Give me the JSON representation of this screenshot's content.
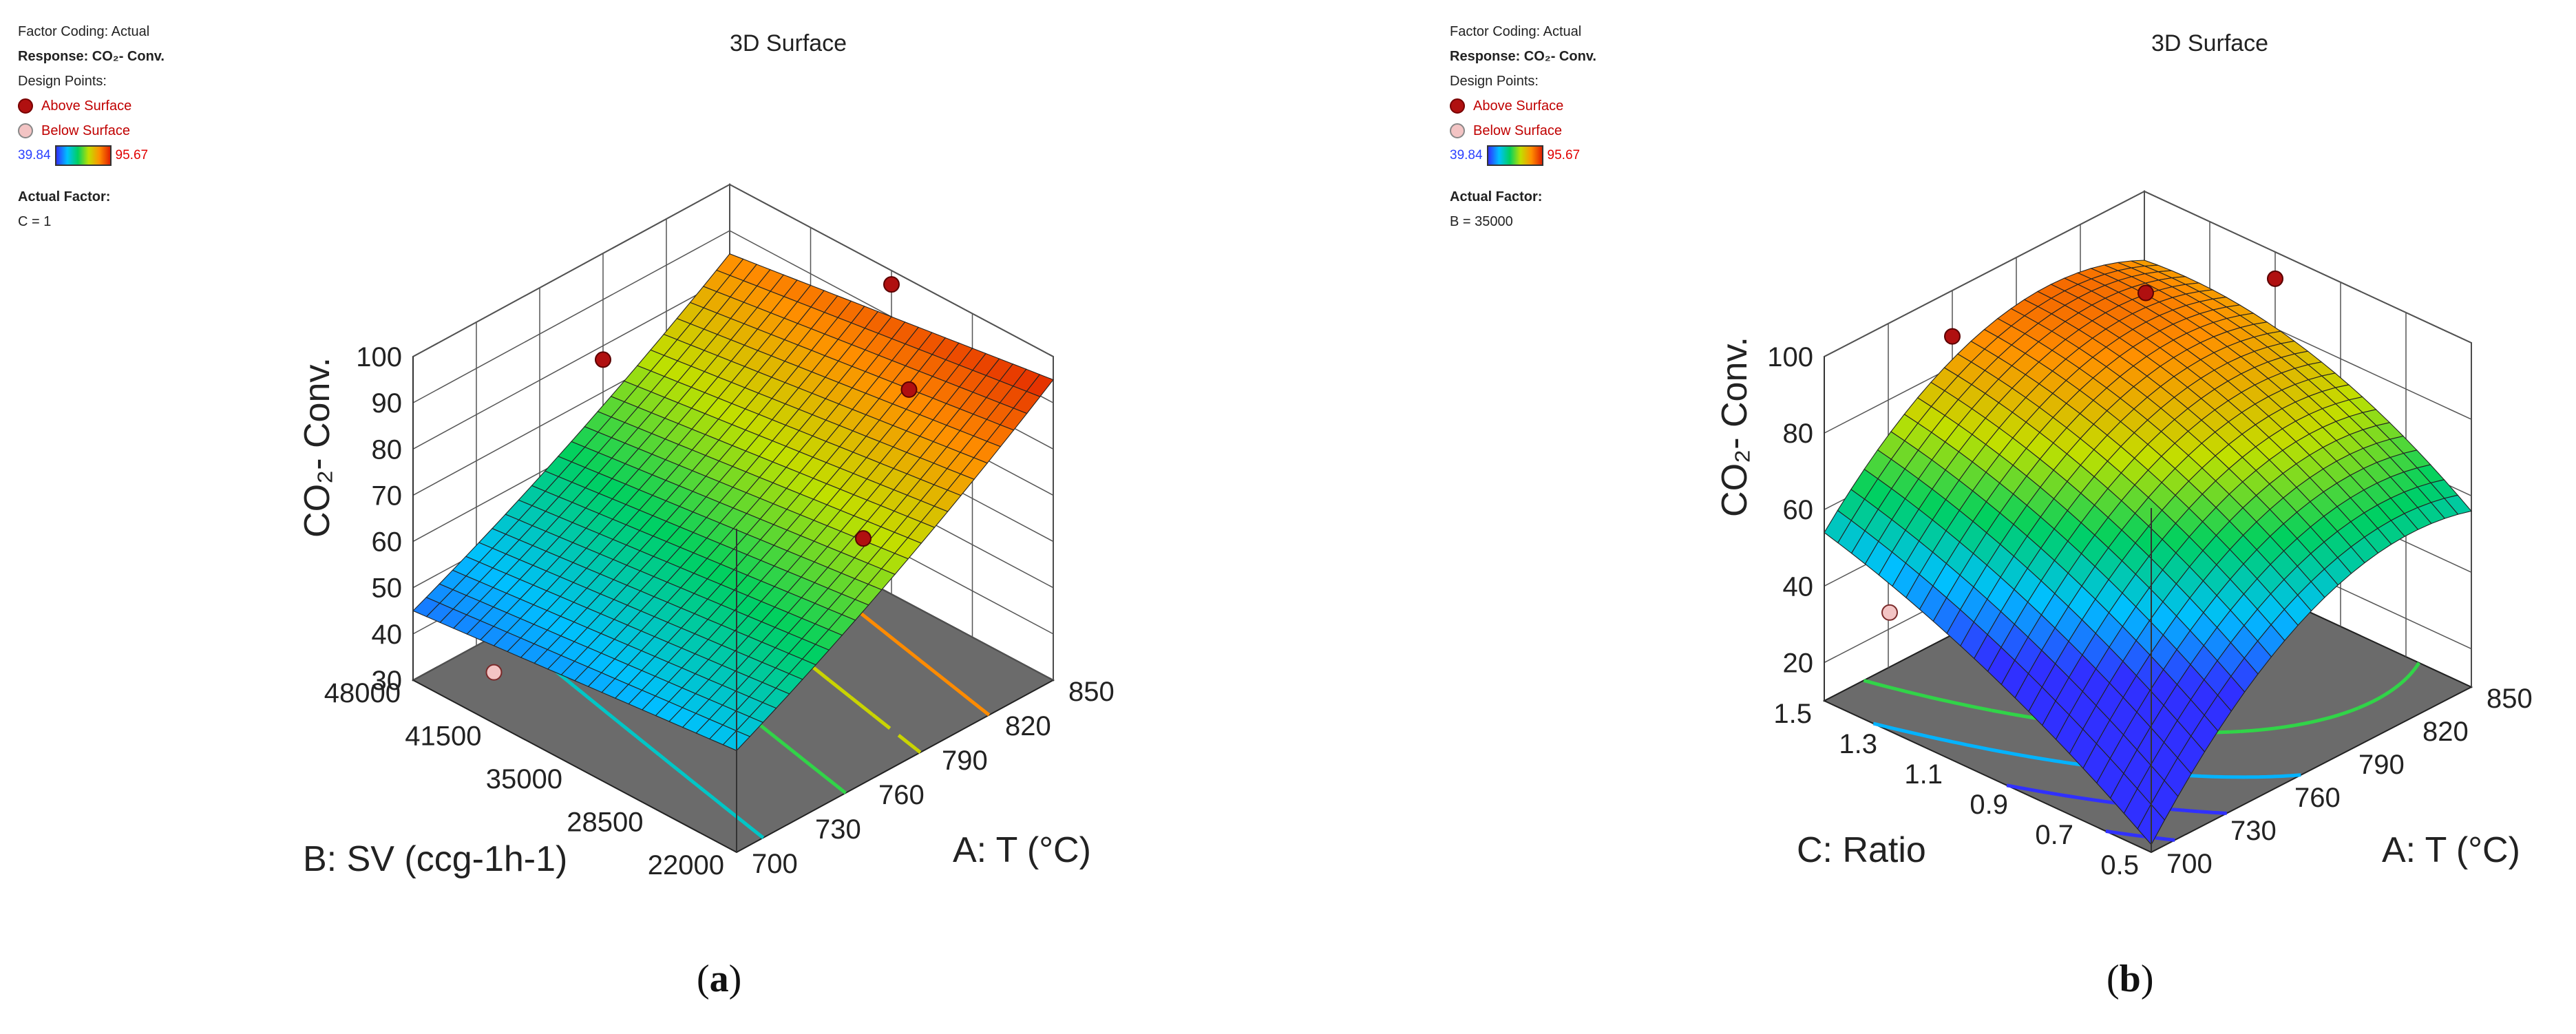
{
  "chart_data": [
    {
      "type": "surface3d",
      "panel_label": "a",
      "title": "3D Surface",
      "factor_coding": "Factor Coding: Actual",
      "response": "Response: CO₂- Conv.",
      "design_points_label": "Design Points:",
      "legend": {
        "above": "Above Surface",
        "below": "Below Surface"
      },
      "colorbar": {
        "min": "39.84",
        "max": "95.67",
        "colors": [
          "#3030ff",
          "#00c0ff",
          "#00d060",
          "#c0e000",
          "#ff9000",
          "#e02000"
        ]
      },
      "actual_factor_label": "Actual Factor:",
      "actual_factor_value": "C = 1",
      "zlabel": "CO₂- Conv.",
      "zticks": [
        "30",
        "40",
        "50",
        "60",
        "70",
        "80",
        "90",
        "100"
      ],
      "zlim": [
        30,
        100
      ],
      "xlabel": "A: T (°C)",
      "xticks": [
        "700",
        "730",
        "760",
        "790",
        "820",
        "850"
      ],
      "xlim": [
        700,
        850
      ],
      "ylabel": "B: SV (ccg-1h-1)",
      "yticks": [
        "22000",
        "28500",
        "35000",
        "41500",
        "48000"
      ],
      "ylim": [
        22000,
        48000
      ],
      "corner_values": {
        "T700_SV48000": 45,
        "T700_SV22000": 52,
        "T850_SV22000": 95,
        "T850_SV48000": 85
      },
      "design_points": [
        {
          "type": "above",
          "T": 760,
          "SV": 22000,
          "z": 83
        },
        {
          "type": "above",
          "T": 820,
          "SV": 28500,
          "z": 91
        },
        {
          "type": "above",
          "T": 850,
          "SV": 35000,
          "z": 97
        },
        {
          "type": "above",
          "T": 790,
          "SV": 48000,
          "z": 77
        },
        {
          "type": "below",
          "T": 700,
          "SV": 41500,
          "z": 41
        }
      ]
    },
    {
      "type": "surface3d",
      "panel_label": "b",
      "title": "3D Surface",
      "factor_coding": "Factor Coding: Actual",
      "response": "Response: CO₂- Conv.",
      "design_points_label": "Design Points:",
      "legend": {
        "above": "Above Surface",
        "below": "Below Surface"
      },
      "colorbar": {
        "min": "39.84",
        "max": "95.67",
        "colors": [
          "#3030ff",
          "#00c0ff",
          "#00d060",
          "#c0e000",
          "#ff9000",
          "#e02000"
        ]
      },
      "actual_factor_label": "Actual Factor:",
      "actual_factor_value": "B = 35000",
      "zlabel": "CO₂- Conv.",
      "zticks": [
        "20",
        "40",
        "60",
        "80",
        "100"
      ],
      "zlim": [
        10,
        100
      ],
      "xlabel": "A: T (°C)",
      "xticks": [
        "700",
        "730",
        "760",
        "790",
        "820",
        "850"
      ],
      "xlim": [
        700,
        850
      ],
      "ylabel": "C: Ratio",
      "yticks": [
        "0.5",
        "0.7",
        "0.9",
        "1.1",
        "1.3",
        "1.5"
      ],
      "ylim": [
        0.5,
        1.5
      ],
      "corner_values": {
        "T700_R1.5": 54,
        "T700_R0.5": 12,
        "T850_R0.5": 56,
        "T850_R1.5": 82
      },
      "peak": {
        "T": 820,
        "R": 1.2,
        "z": 96
      },
      "design_points": [
        {
          "type": "above",
          "T": 760,
          "R": 1.5,
          "z": 88
        },
        {
          "type": "above",
          "T": 820,
          "R": 1.3,
          "z": 90
        },
        {
          "type": "above",
          "T": 850,
          "R": 1.1,
          "z": 93
        },
        {
          "type": "below",
          "T": 700,
          "R": 1.3,
          "z": 41
        }
      ]
    }
  ]
}
